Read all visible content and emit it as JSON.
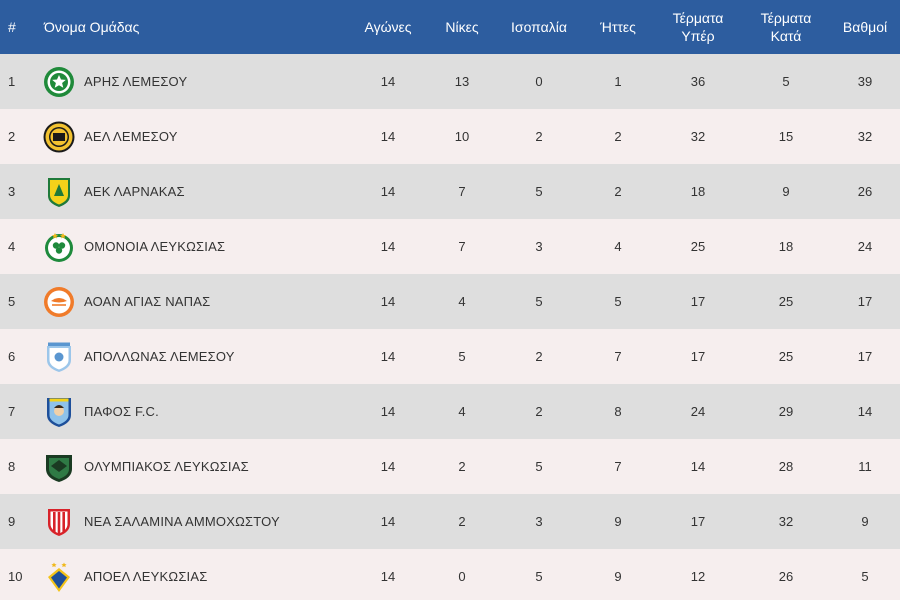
{
  "headers": {
    "pos": "#",
    "team": "Όνομα Ομάδας",
    "played": "Αγώνες",
    "wins": "Νίκες",
    "draws": "Ισοπαλία",
    "losses": "Ήττες",
    "gf_line1": "Τέρματα",
    "gf_line2": "Υπέρ",
    "ga_line1": "Τέρματα",
    "ga_line2": "Κατά",
    "points": "Βαθμοί"
  },
  "colors": {
    "header_bg": "#2d5d9f",
    "row_odd": "#dedede",
    "row_even": "#f6eeee"
  },
  "rows": [
    {
      "pos": "1",
      "team": "ΑΡΗΣ ΛΕΜΕΣΟΥ",
      "logo": "aris-limassol-logo-icon",
      "played": "14",
      "wins": "13",
      "draws": "0",
      "losses": "1",
      "gf": "36",
      "ga": "5",
      "points": "39"
    },
    {
      "pos": "2",
      "team": "ΑΕΛ ΛΕΜΕΣΟΥ",
      "logo": "ael-limassol-logo-icon",
      "played": "14",
      "wins": "10",
      "draws": "2",
      "losses": "2",
      "gf": "32",
      "ga": "15",
      "points": "32"
    },
    {
      "pos": "3",
      "team": "ΑΕΚ ΛΑΡΝΑΚΑΣ",
      "logo": "aek-larnaca-logo-icon",
      "played": "14",
      "wins": "7",
      "draws": "5",
      "losses": "2",
      "gf": "18",
      "ga": "9",
      "points": "26"
    },
    {
      "pos": "4",
      "team": "ΟΜΟΝΟΙΑ ΛΕΥΚΩΣΙΑΣ",
      "logo": "omonoia-logo-icon",
      "played": "14",
      "wins": "7",
      "draws": "3",
      "losses": "4",
      "gf": "25",
      "ga": "18",
      "points": "24"
    },
    {
      "pos": "5",
      "team": "ΑΟΑΝ ΑΓΙΑΣ ΝΑΠΑΣ",
      "logo": "aoan-agia-napa-logo-icon",
      "played": "14",
      "wins": "4",
      "draws": "5",
      "losses": "5",
      "gf": "17",
      "ga": "25",
      "points": "17"
    },
    {
      "pos": "6",
      "team": "ΑΠΟΛΛΩΝΑΣ ΛΕΜΕΣΟΥ",
      "logo": "apollon-logo-icon",
      "played": "14",
      "wins": "5",
      "draws": "2",
      "losses": "7",
      "gf": "17",
      "ga": "25",
      "points": "17"
    },
    {
      "pos": "7",
      "team": "ΠΑΦΟΣ F.C.",
      "logo": "pafos-fc-logo-icon",
      "played": "14",
      "wins": "4",
      "draws": "2",
      "losses": "8",
      "gf": "24",
      "ga": "29",
      "points": "14"
    },
    {
      "pos": "8",
      "team": "ΟΛΥΜΠΙΑΚΟΣ ΛΕΥΚΩΣΙΑΣ",
      "logo": "olympiakos-nicosia-logo-icon",
      "played": "14",
      "wins": "2",
      "draws": "5",
      "losses": "7",
      "gf": "14",
      "ga": "28",
      "points": "11"
    },
    {
      "pos": "9",
      "team": "ΝΕΑ ΣΑΛΑΜΙΝΑ ΑΜΜΟΧΩΣΤΟΥ",
      "logo": "nea-salamina-logo-icon",
      "played": "14",
      "wins": "2",
      "draws": "3",
      "losses": "9",
      "gf": "17",
      "ga": "32",
      "points": "9"
    },
    {
      "pos": "10",
      "team": "ΑΠΟΕΛ ΛΕΥΚΩΣΙΑΣ",
      "logo": "apoel-logo-icon",
      "played": "14",
      "wins": "0",
      "draws": "5",
      "losses": "9",
      "gf": "12",
      "ga": "26",
      "points": "5"
    }
  ]
}
